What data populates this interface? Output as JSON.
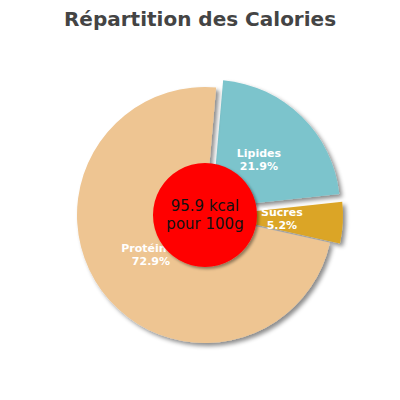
{
  "chart_data": {
    "type": "pie",
    "title": "Répartition des Calories",
    "categories": [
      "Lipides",
      "Sucres",
      "Protéines"
    ],
    "values": [
      21.9,
      5.2,
      72.9
    ],
    "value_labels": [
      "21.9%",
      "5.2%",
      "72.9%"
    ],
    "colors": [
      "#7bc4cc",
      "#dba526",
      "#eec592"
    ],
    "data_labels": true,
    "center_label": [
      "95.9 kcal",
      "pour 100g"
    ],
    "center_color": "#ff0000"
  }
}
